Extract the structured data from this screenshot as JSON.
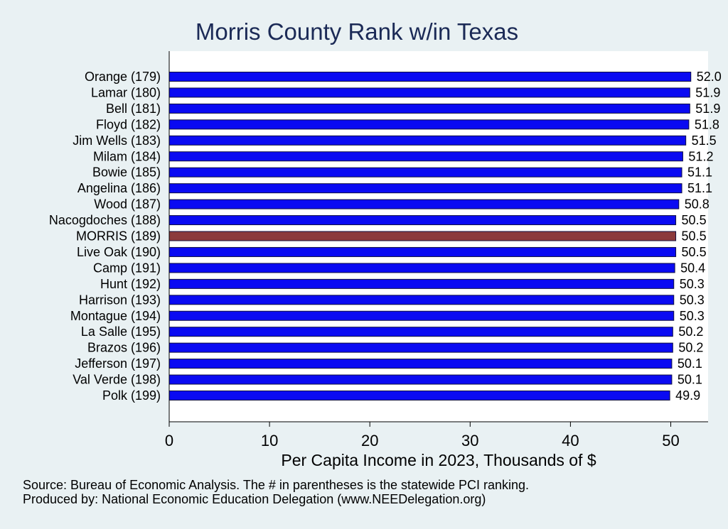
{
  "chart_data": {
    "type": "bar",
    "orientation": "horizontal",
    "title": "Morris County Rank w/in Texas",
    "xlabel": "Per Capita Income in 2023, Thousands of $",
    "ylabel": "",
    "xlim": [
      0,
      54
    ],
    "x_ticks": [
      0,
      10,
      20,
      30,
      40,
      50
    ],
    "grid": false,
    "categories": [
      "Orange (179)",
      "Lamar (180)",
      "Bell (181)",
      "Floyd (182)",
      "Jim Wells (183)",
      "Milam (184)",
      "Bowie (185)",
      "Angelina (186)",
      "Wood (187)",
      "Nacogdoches (188)",
      "MORRIS (189)",
      "Live Oak (190)",
      "Camp (191)",
      "Hunt (192)",
      "Harrison (193)",
      "Montague (194)",
      "La Salle (195)",
      "Brazos (196)",
      "Jefferson (197)",
      "Val Verde (198)",
      "Polk (199)"
    ],
    "values": [
      52.0,
      51.9,
      51.9,
      51.8,
      51.5,
      51.2,
      51.1,
      51.1,
      50.8,
      50.5,
      50.5,
      50.5,
      50.4,
      50.3,
      50.3,
      50.3,
      50.2,
      50.2,
      50.1,
      50.1,
      49.9
    ],
    "value_labels": [
      "52.0",
      "51.9",
      "51.9",
      "51.8",
      "51.5",
      "51.2",
      "51.1",
      "51.1",
      "50.8",
      "50.5",
      "50.5",
      "50.5",
      "50.4",
      "50.3",
      "50.3",
      "50.3",
      "50.2",
      "50.2",
      "50.1",
      "50.1",
      "49.9"
    ],
    "highlight_category": "MORRIS (189)",
    "colors": {
      "bar": "#0a0af2",
      "highlight": "#8c3a3c",
      "outline": "#101040"
    }
  },
  "notes": {
    "source": "Source: Bureau of Economic Analysis. The # in parentheses is the statewide PCI ranking.",
    "producer": "Produced by: National Economic Education Delegation (www.NEEDelegation.org)"
  }
}
